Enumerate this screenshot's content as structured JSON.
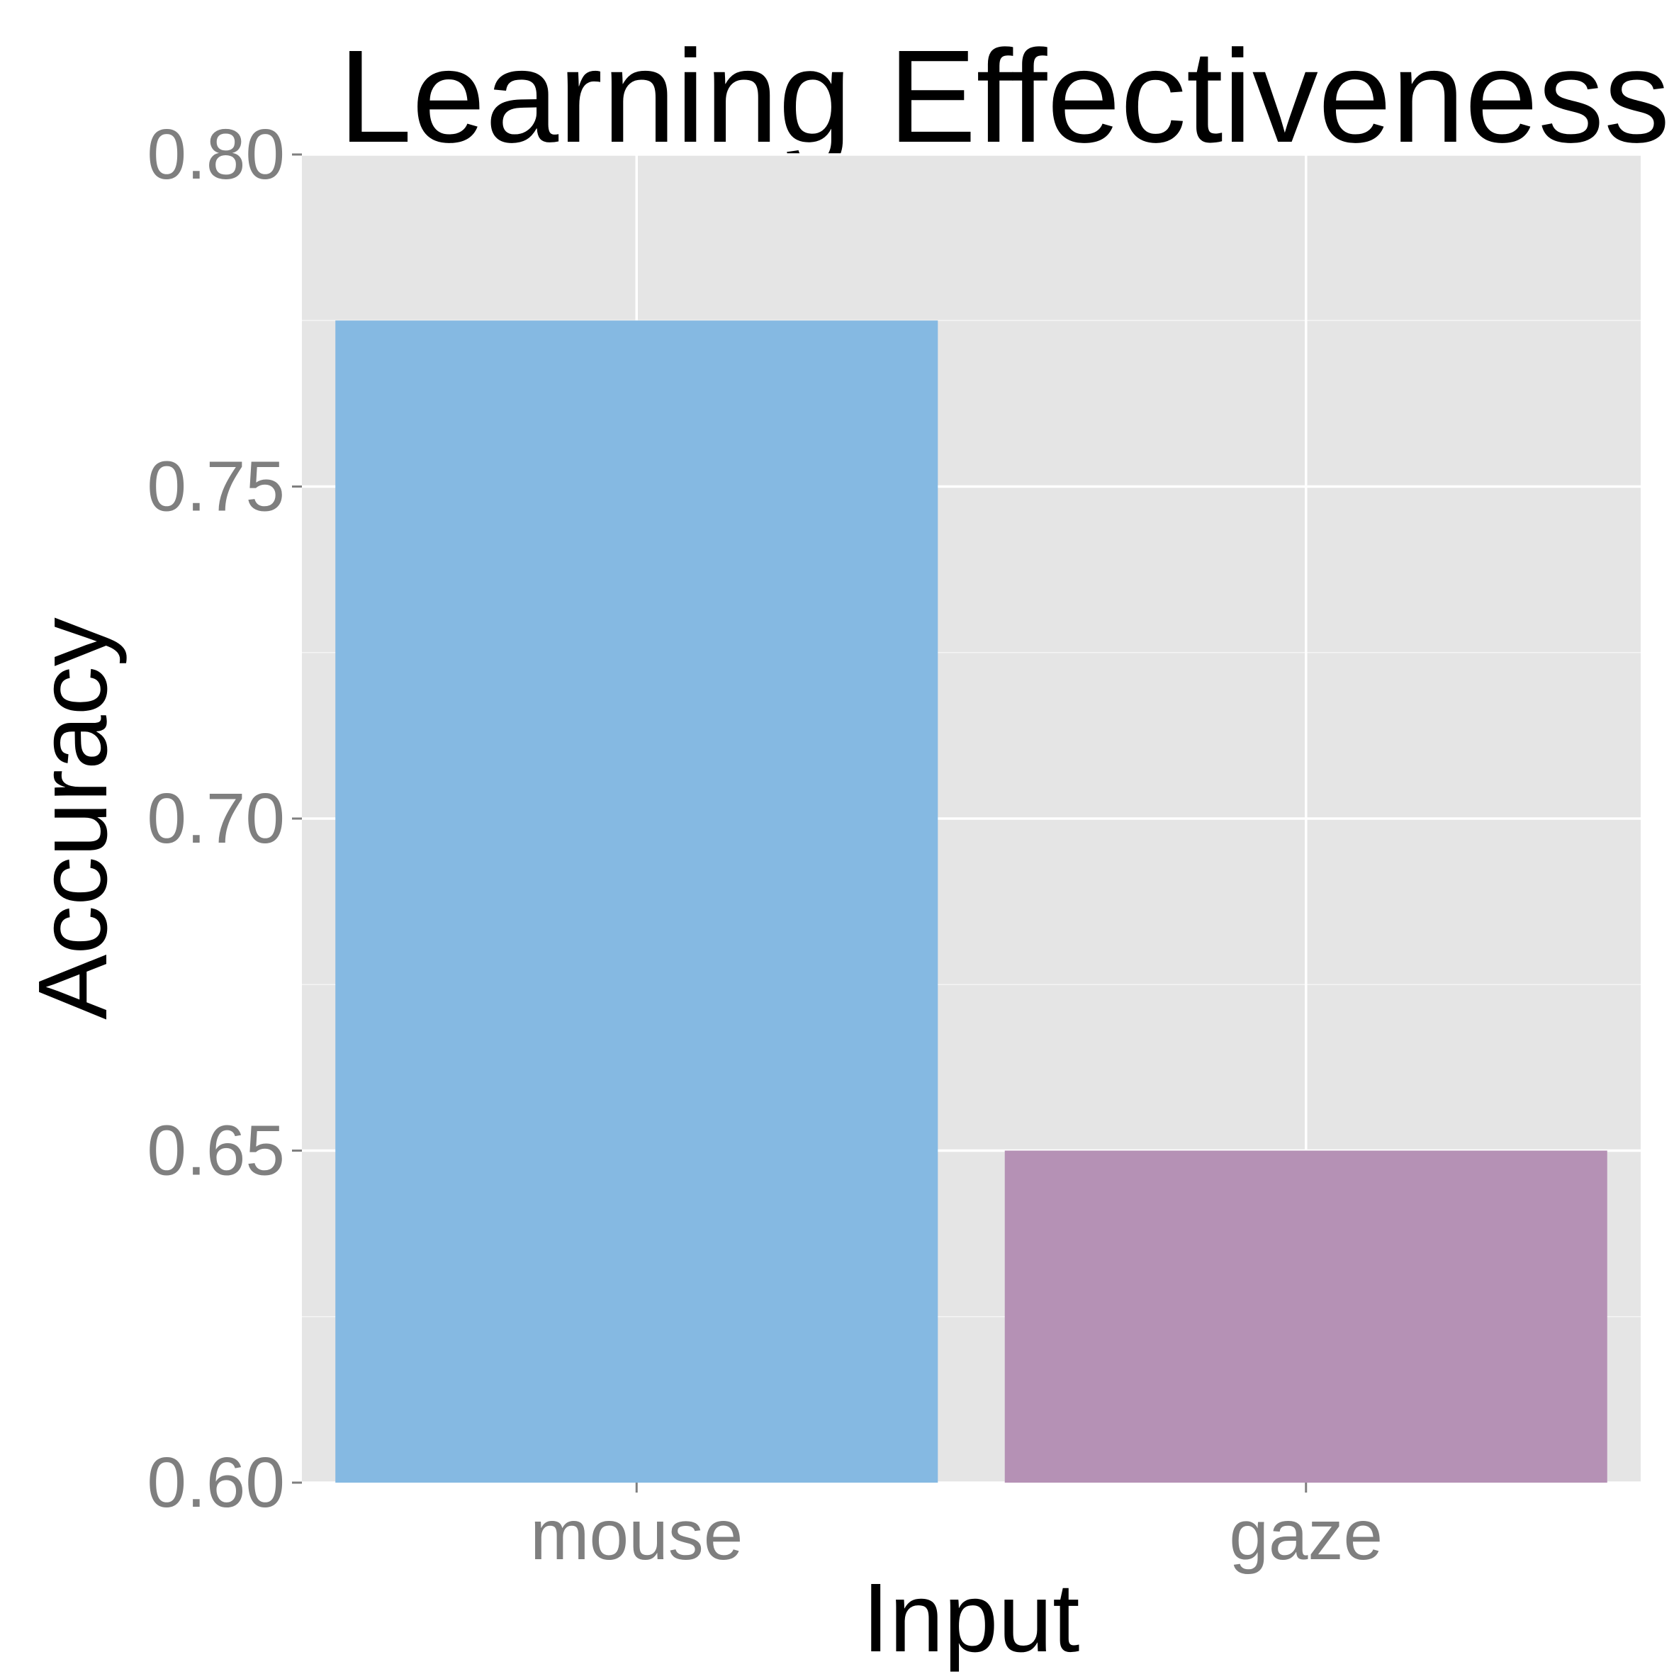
{
  "chart_data": {
    "type": "bar",
    "title": "Learning Effectiveness",
    "xlabel": "Input",
    "ylabel": "Accuracy",
    "categories": [
      "mouse",
      "gaze"
    ],
    "values": [
      0.775,
      0.65
    ],
    "ylim": [
      0.6,
      0.8
    ],
    "yticks": [
      "0.60",
      "0.65",
      "0.70",
      "0.75",
      "0.80"
    ],
    "grid": true,
    "legend": "none",
    "colors": {
      "bars": [
        "#85b9e2",
        "#b591b5"
      ],
      "panel": "#e5e5e5",
      "grid": "#ffffff",
      "tick_text": "#7f7f7f",
      "axis_ticks": "#7f7f7f"
    }
  }
}
